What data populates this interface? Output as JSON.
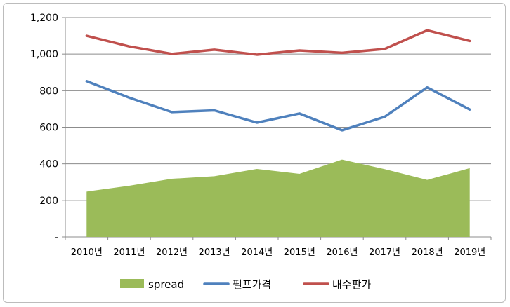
{
  "chart_data": {
    "type": "line",
    "categories": [
      "2010년",
      "2011년",
      "2012년",
      "2013년",
      "2014년",
      "2015년",
      "2016년",
      "2017년",
      "2018년",
      "2019년"
    ],
    "y_tick_labels": [
      "-",
      "200",
      "400",
      "600",
      "800",
      "1,000",
      "1,200"
    ],
    "ylim": [
      0,
      1200
    ],
    "grid": true,
    "legend_position": "bottom",
    "series": [
      {
        "name": "spread",
        "type": "area",
        "color": "#9bbb59",
        "values": [
          248,
          280,
          318,
          332,
          372,
          345,
          423,
          371,
          312,
          376
        ]
      },
      {
        "name": "펄프가격",
        "type": "line",
        "color": "#4f81bd",
        "values": [
          852,
          762,
          683,
          692,
          625,
          675,
          583,
          657,
          818,
          697
        ]
      },
      {
        "name": "내수판가",
        "type": "line",
        "color": "#c0504d",
        "values": [
          1100,
          1042,
          1001,
          1024,
          997,
          1020,
          1007,
          1028,
          1130,
          1072
        ]
      }
    ]
  }
}
